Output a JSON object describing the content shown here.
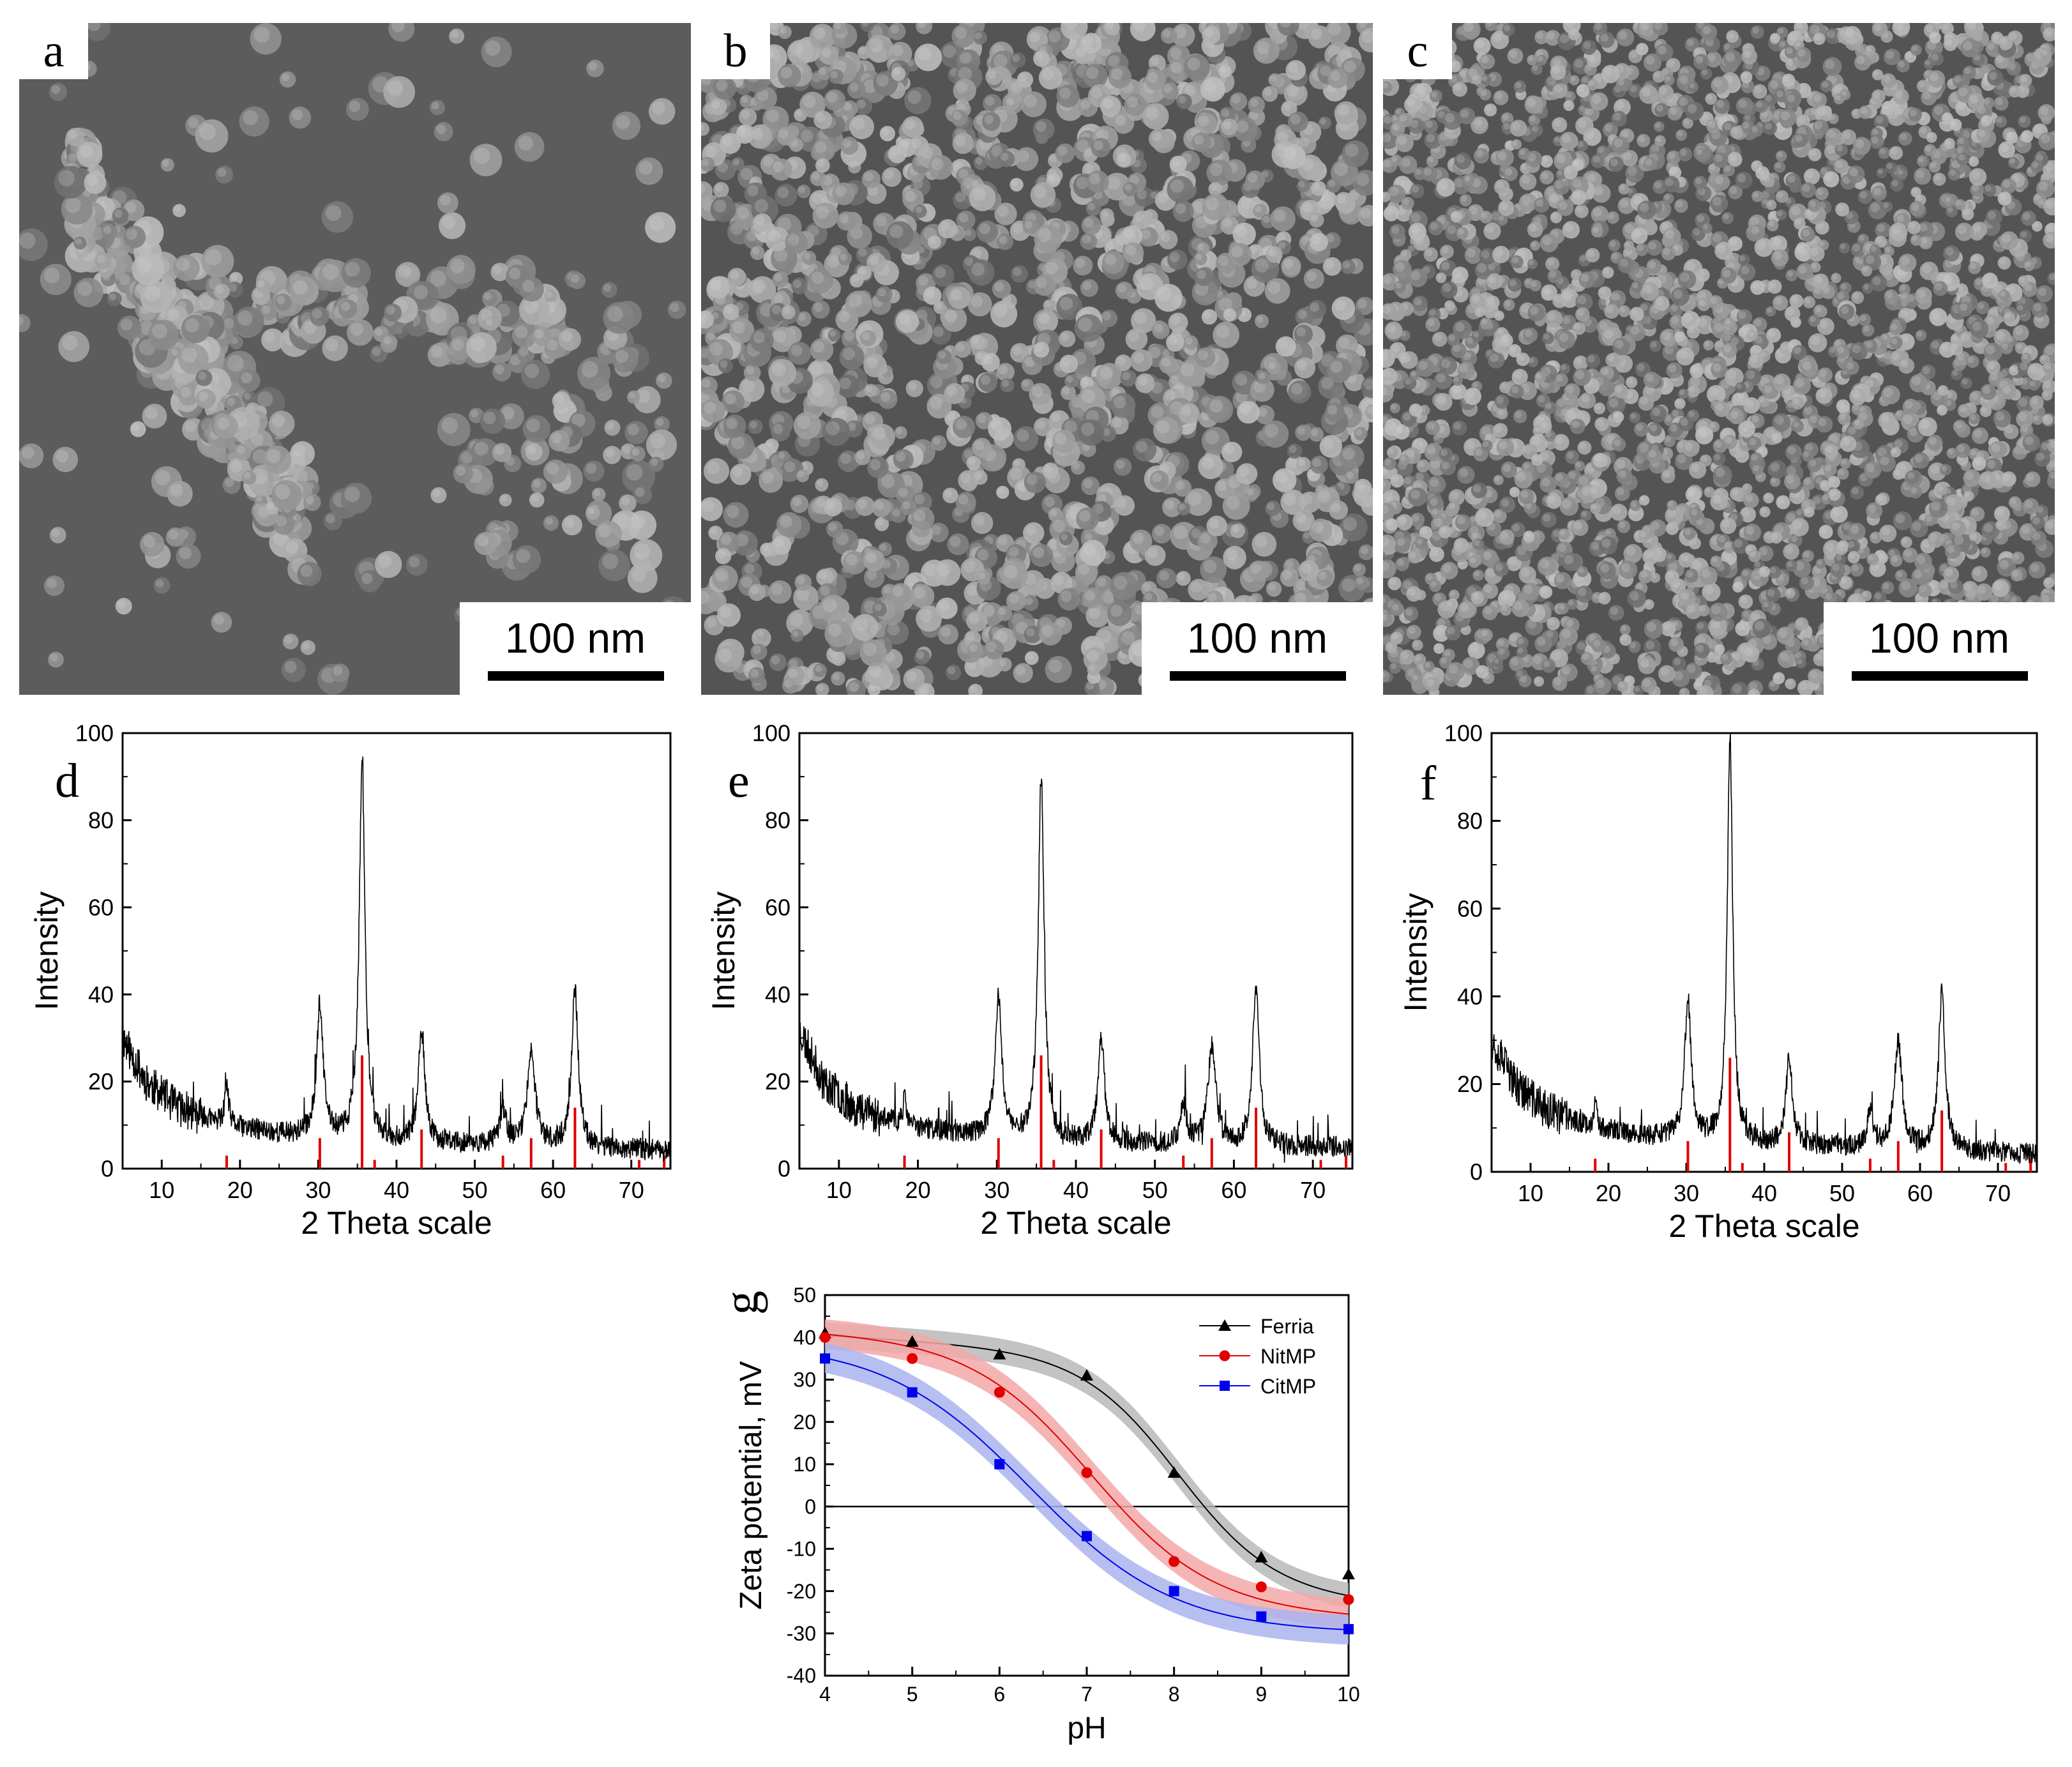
{
  "colors": {
    "black": "#000000",
    "red": "#e00000",
    "blue": "#0000ee",
    "gray_band": "#b8b8b8",
    "red_band": "#f3a8a8",
    "blue_band": "#aab4ef"
  },
  "panels_sem": [
    {
      "id": "a",
      "label": "a",
      "scale_label": "100 nm"
    },
    {
      "id": "b",
      "label": "b",
      "scale_label": "100 nm"
    },
    {
      "id": "c",
      "label": "c",
      "scale_label": "100 nm"
    }
  ],
  "chart_data": [
    {
      "id": "d",
      "type": "line",
      "panel_label": "d",
      "xlabel": "2 Theta scale",
      "ylabel": "Intensity",
      "xlim": [
        5,
        75
      ],
      "ylim": [
        0,
        100
      ],
      "xticks": [
        "10",
        "20",
        "30",
        "40",
        "50",
        "60",
        "70"
      ],
      "yticks": [
        "0",
        "20",
        "40",
        "60",
        "80",
        "100"
      ],
      "background": [
        [
          5,
          30
        ],
        [
          8,
          20
        ],
        [
          12,
          14
        ],
        [
          18,
          10
        ],
        [
          25,
          8
        ],
        [
          40,
          6
        ],
        [
          60,
          5
        ],
        [
          75,
          4
        ]
      ],
      "peaks": [
        {
          "x": 18.3,
          "h": 9,
          "w": 0.3
        },
        {
          "x": 30.2,
          "h": 30,
          "w": 0.5
        },
        {
          "x": 35.6,
          "h": 86,
          "w": 0.45
        },
        {
          "x": 43.2,
          "h": 25,
          "w": 0.5
        },
        {
          "x": 53.6,
          "h": 8,
          "w": 0.5
        },
        {
          "x": 57.2,
          "h": 22,
          "w": 0.6
        },
        {
          "x": 62.8,
          "h": 36,
          "w": 0.5
        }
      ],
      "reference_lines": [
        {
          "x": 18.3,
          "h": 3
        },
        {
          "x": 30.2,
          "h": 7
        },
        {
          "x": 35.6,
          "h": 26
        },
        {
          "x": 37.2,
          "h": 2
        },
        {
          "x": 43.2,
          "h": 9
        },
        {
          "x": 53.6,
          "h": 3
        },
        {
          "x": 57.2,
          "h": 7
        },
        {
          "x": 62.8,
          "h": 14
        },
        {
          "x": 71.0,
          "h": 2
        },
        {
          "x": 74.2,
          "h": 3
        }
      ],
      "noise": 5,
      "seed": 11
    },
    {
      "id": "e",
      "type": "line",
      "panel_label": "e",
      "xlabel": "2 Theta scale",
      "ylabel": "Intensity",
      "xlim": [
        5,
        75
      ],
      "ylim": [
        0,
        100
      ],
      "xticks": [
        "10",
        "20",
        "30",
        "40",
        "50",
        "60",
        "70"
      ],
      "yticks": [
        "0",
        "20",
        "40",
        "60",
        "80",
        "100"
      ],
      "background": [
        [
          5,
          32
        ],
        [
          8,
          20
        ],
        [
          12,
          14
        ],
        [
          18,
          10
        ],
        [
          25,
          8
        ],
        [
          40,
          6
        ],
        [
          60,
          5
        ],
        [
          75,
          5
        ]
      ],
      "peaks": [
        {
          "x": 18.3,
          "h": 6,
          "w": 0.3
        },
        {
          "x": 30.2,
          "h": 32,
          "w": 0.5
        },
        {
          "x": 35.6,
          "h": 83,
          "w": 0.45
        },
        {
          "x": 43.2,
          "h": 24,
          "w": 0.5
        },
        {
          "x": 53.6,
          "h": 9,
          "w": 0.5
        },
        {
          "x": 57.2,
          "h": 23,
          "w": 0.6
        },
        {
          "x": 62.8,
          "h": 37,
          "w": 0.5
        }
      ],
      "reference_lines": [
        {
          "x": 18.3,
          "h": 3
        },
        {
          "x": 30.2,
          "h": 7
        },
        {
          "x": 35.6,
          "h": 26
        },
        {
          "x": 37.2,
          "h": 2
        },
        {
          "x": 43.2,
          "h": 9
        },
        {
          "x": 53.6,
          "h": 3
        },
        {
          "x": 57.2,
          "h": 7
        },
        {
          "x": 62.8,
          "h": 14
        },
        {
          "x": 71.0,
          "h": 2
        },
        {
          "x": 74.2,
          "h": 3
        }
      ],
      "noise": 5,
      "seed": 23
    },
    {
      "id": "f",
      "type": "line",
      "panel_label": "f",
      "xlabel": "2 Theta scale",
      "ylabel": "Intensity",
      "xlim": [
        5,
        75
      ],
      "ylim": [
        0,
        100
      ],
      "xticks": [
        "10",
        "20",
        "30",
        "40",
        "50",
        "60",
        "70"
      ],
      "yticks": [
        "0",
        "20",
        "40",
        "60",
        "80",
        "100"
      ],
      "background": [
        [
          5,
          30
        ],
        [
          8,
          20
        ],
        [
          12,
          14
        ],
        [
          18,
          10
        ],
        [
          25,
          8
        ],
        [
          40,
          6
        ],
        [
          60,
          5
        ],
        [
          75,
          4
        ]
      ],
      "peaks": [
        {
          "x": 18.3,
          "h": 5,
          "w": 0.3
        },
        {
          "x": 30.2,
          "h": 32,
          "w": 0.5
        },
        {
          "x": 35.6,
          "h": 92,
          "w": 0.42
        },
        {
          "x": 43.2,
          "h": 20,
          "w": 0.5
        },
        {
          "x": 53.6,
          "h": 8,
          "w": 0.5
        },
        {
          "x": 57.2,
          "h": 24,
          "w": 0.6
        },
        {
          "x": 62.8,
          "h": 36,
          "w": 0.5
        }
      ],
      "reference_lines": [
        {
          "x": 18.3,
          "h": 3
        },
        {
          "x": 30.2,
          "h": 7
        },
        {
          "x": 35.6,
          "h": 26
        },
        {
          "x": 37.2,
          "h": 2
        },
        {
          "x": 43.2,
          "h": 9
        },
        {
          "x": 53.6,
          "h": 3
        },
        {
          "x": 57.2,
          "h": 7
        },
        {
          "x": 62.8,
          "h": 14
        },
        {
          "x": 71.0,
          "h": 2
        },
        {
          "x": 74.2,
          "h": 3
        }
      ],
      "noise": 5,
      "seed": 37
    },
    {
      "id": "g",
      "type": "line",
      "panel_label": "g",
      "xlabel": "pH",
      "ylabel": "Zeta potential, mV",
      "xlim": [
        4,
        10
      ],
      "ylim": [
        -40,
        50
      ],
      "xticks": [
        "4",
        "5",
        "6",
        "7",
        "8",
        "9",
        "10"
      ],
      "yticks": [
        "-40",
        "-30",
        "-20",
        "-10",
        "0",
        "10",
        "20",
        "30",
        "40",
        "50"
      ],
      "zero_line": 0,
      "legend": "top-right",
      "series": [
        {
          "name": "Ferria",
          "marker": "triangle",
          "color": "#000000",
          "band_color": "#b8b8b8",
          "x": [
            4,
            5,
            6,
            7,
            8,
            9,
            10
          ],
          "y": [
            41,
            39,
            36,
            31,
            8,
            -12,
            -16
          ],
          "fit": {
            "top": 40.5,
            "bottom": -15.5,
            "x0": 8.05,
            "k": 1.8,
            "slope": -1.2
          },
          "band": 3
        },
        {
          "name": "NitMP",
          "marker": "circle",
          "color": "#e00000",
          "band_color": "#f3a8a8",
          "x": [
            4,
            5,
            6,
            7,
            8,
            9,
            10
          ],
          "y": [
            40,
            35,
            27,
            8,
            -13,
            -19,
            -22
          ],
          "fit": {
            "top": 41.5,
            "bottom": -21.5,
            "x0": 7.05,
            "k": 1.45,
            "slope": -0.8
          },
          "band": 3.5
        },
        {
          "name": "CitMP",
          "marker": "square",
          "color": "#0000ee",
          "band_color": "#aab4ef",
          "x": [
            4,
            5,
            6,
            7,
            8,
            9,
            10
          ],
          "y": [
            35,
            27,
            10,
            -7,
            -20,
            -26,
            -29
          ],
          "fit": {
            "top": 39,
            "bottom": -30,
            "x0": 6.35,
            "k": 1.2,
            "slope": 0
          },
          "band": 3.5
        }
      ]
    }
  ]
}
